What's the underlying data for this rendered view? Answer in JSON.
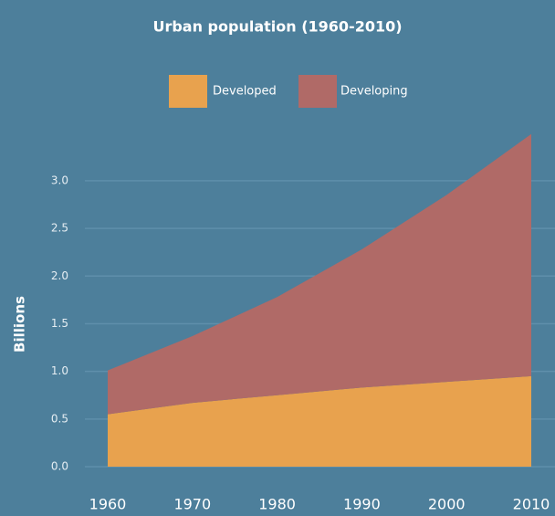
{
  "chart_data": {
    "type": "area",
    "stacked": true,
    "title": "Urban population (1960-2010)",
    "y_label": "Billions",
    "x": [
      1960,
      1970,
      1980,
      1990,
      2000,
      2010
    ],
    "series": [
      {
        "name": "Developed",
        "color": "#e8a24e",
        "values": [
          0.55,
          0.67,
          0.75,
          0.83,
          0.89,
          0.95
        ]
      },
      {
        "name": "Developing",
        "color": "#b06a67",
        "values": [
          0.46,
          0.7,
          1.03,
          1.45,
          1.96,
          2.54
        ]
      }
    ],
    "xlim": [
      1960,
      2010
    ],
    "xticks": [
      1960,
      1970,
      1980,
      1990,
      2000,
      2010
    ],
    "ylim": [
      0,
      3.5
    ],
    "yticks": [
      {
        "value": 0,
        "label": "0.0"
      },
      {
        "value": 0.5,
        "label": "0.5"
      },
      {
        "value": 1,
        "label": "1.0"
      },
      {
        "value": 1.5,
        "label": "1.5"
      },
      {
        "value": 2,
        "label": "2.0"
      },
      {
        "value": 2.5,
        "label": "2.5"
      },
      {
        "value": 3,
        "label": "3.0"
      }
    ],
    "grid": true,
    "legend": "top"
  }
}
